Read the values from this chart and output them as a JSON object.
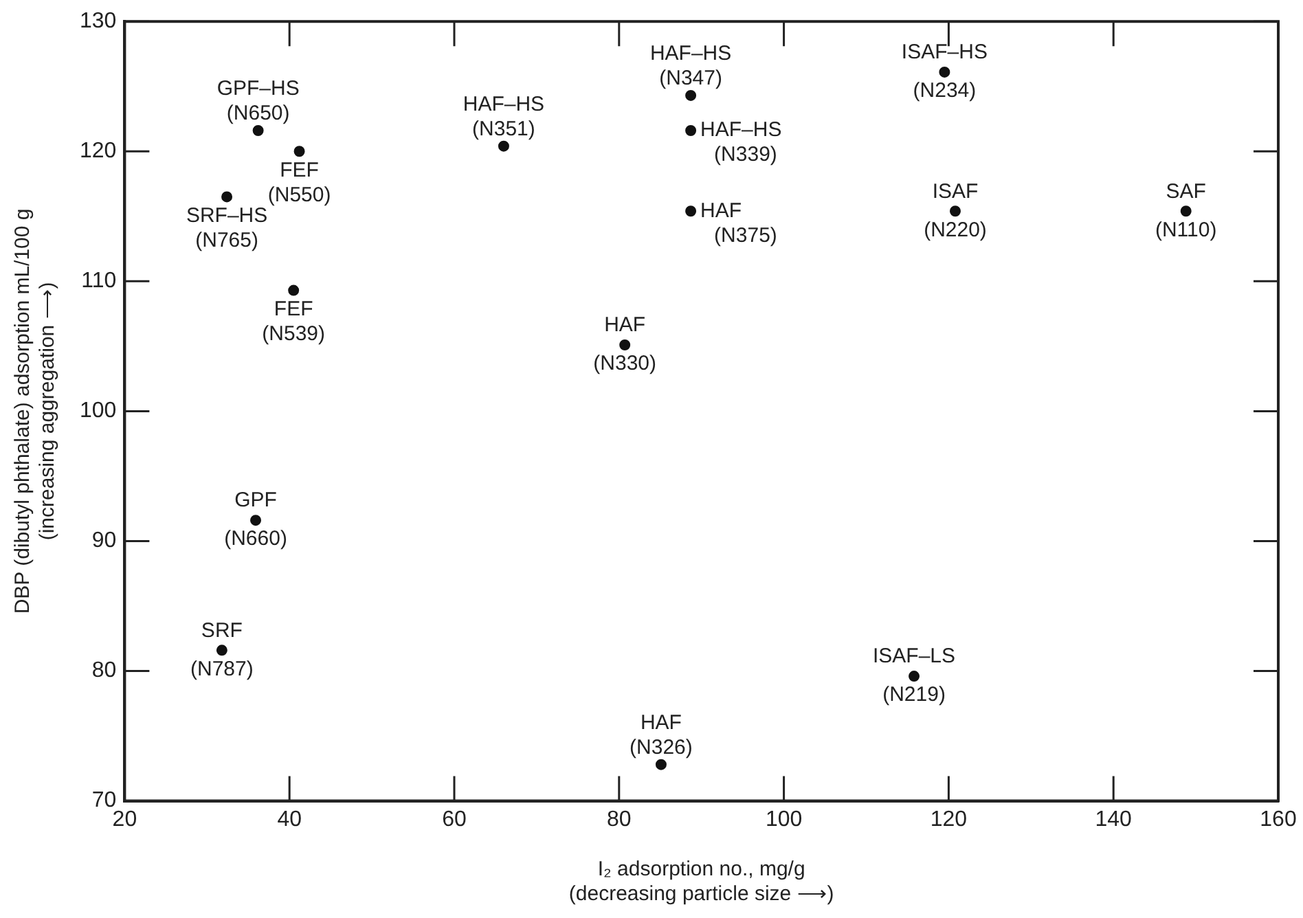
{
  "chart_data": {
    "type": "scatter",
    "xlabel": "I₂ adsorption no., mg/g\n(decreasing particle size ⟶)",
    "ylabel": "DBP (dibutyl phthalate) adsorption mL/100 g\n(increasing aggregation ⟶)",
    "series": [
      {
        "color": "#111111",
        "x": [
          36.2,
          41.2,
          32.4,
          40.5,
          66.0,
          80.7,
          88.7,
          88.7,
          88.7,
          119.5,
          120.8,
          148.8,
          35.9,
          31.8,
          85.1,
          115.8
        ],
        "values": [
          121.6,
          120.0,
          116.5,
          109.3,
          120.4,
          105.1,
          124.3,
          121.6,
          115.4,
          126.1,
          115.4,
          115.4,
          91.6,
          81.6,
          72.8,
          79.6
        ]
      }
    ],
    "marker": "circle",
    "grid": false,
    "legend": false,
    "xlim": [
      20,
      160
    ],
    "xticks": [
      20,
      40,
      60,
      80,
      100,
      120,
      140,
      160
    ],
    "ylim": [
      70,
      130
    ],
    "yticks": [
      70,
      80,
      90,
      100,
      110,
      120,
      130
    ],
    "annotations": [
      {
        "text": "GPF–HS\n(N650)",
        "x": 36.2,
        "y": 121.6
      },
      {
        "text": "FEF\n(N550)",
        "x": 41.2,
        "y": 120.0
      },
      {
        "text": "SRF–HS\n(N765)",
        "x": 32.4,
        "y": 116.5
      },
      {
        "text": "FEF\n(N539)",
        "x": 40.5,
        "y": 109.3
      },
      {
        "text": "HAF–HS\n(N351)",
        "x": 66.0,
        "y": 120.4
      },
      {
        "text": "HAF\n(N330)",
        "x": 80.7,
        "y": 105.1
      },
      {
        "text": "HAF–HS\n(N347)",
        "x": 88.7,
        "y": 124.3
      },
      {
        "text": "HAF–HS\n(N339)",
        "x": 88.7,
        "y": 121.6
      },
      {
        "text": "HAF\n(N375)",
        "x": 88.7,
        "y": 115.4
      },
      {
        "text": "ISAF–HS\n(N234)",
        "x": 119.5,
        "y": 126.1
      },
      {
        "text": "ISAF\n(N220)",
        "x": 120.8,
        "y": 115.4
      },
      {
        "text": "SAF\n(N110)",
        "x": 148.8,
        "y": 115.4
      },
      {
        "text": "GPF\n(N660)",
        "x": 35.9,
        "y": 91.6
      },
      {
        "text": "SRF\n(N787)",
        "x": 31.8,
        "y": 81.6
      },
      {
        "text": "HAF\n(N326)",
        "x": 85.1,
        "y": 72.8
      },
      {
        "text": "ISAF–LS\n(N219)",
        "x": 115.8,
        "y": 79.6
      }
    ]
  }
}
